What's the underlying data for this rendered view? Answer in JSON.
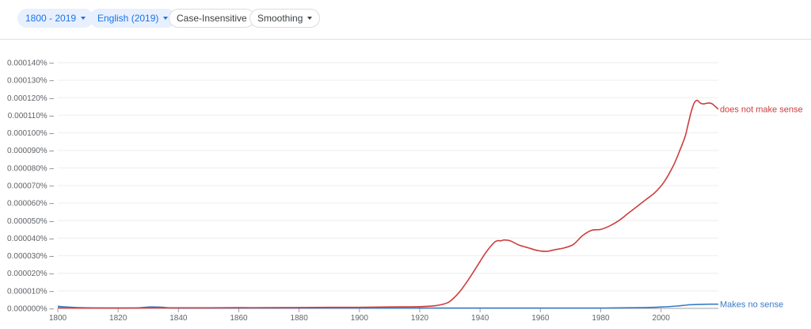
{
  "toolbar": {
    "year_range": "1800 - 2019",
    "corpus": "English (2019)",
    "case": "Case-Insensitive",
    "smoothing": "Smoothing"
  },
  "colors": {
    "accent": "#1a73e8",
    "chip_fill": "#e8f0fe",
    "series_red": "#cc3e3e",
    "series_blue": "#3b7bc8"
  },
  "chart_data": {
    "type": "line",
    "xlim": [
      1800,
      2019
    ],
    "ylim": [
      0,
      0.00014
    ],
    "x_ticks": [
      1800,
      1820,
      1840,
      1860,
      1880,
      1900,
      1920,
      1940,
      1960,
      1980,
      2000
    ],
    "x_tick_labels": [
      "1800",
      "1820",
      "1840",
      "1860",
      "1880",
      "1900",
      "1920",
      "1940",
      "1960",
      "1980",
      "2000"
    ],
    "y_ticks": [
      0,
      1e-05,
      2e-05,
      3e-05,
      4e-05,
      5e-05,
      6e-05,
      7e-05,
      8e-05,
      9e-05,
      0.0001,
      0.00011,
      0.00012,
      0.00013,
      0.00014
    ],
    "y_tick_labels": [
      "0.000000%",
      "0.000010%",
      "0.000020%",
      "0.000030%",
      "0.000040%",
      "0.000050%",
      "0.000060%",
      "0.000070%",
      "0.000080%",
      "0.000090%",
      "0.000100%",
      "0.000110%",
      "0.000120%",
      "0.000130%",
      "0.000140%"
    ],
    "grid": true,
    "legend": "labels at line ends",
    "series": [
      {
        "name": "does not make sense",
        "color": "#cc3e3e",
        "x": [
          1800,
          1805,
          1810,
          1815,
          1820,
          1825,
          1830,
          1835,
          1840,
          1850,
          1860,
          1870,
          1880,
          1890,
          1900,
          1910,
          1920,
          1925,
          1928,
          1930,
          1933,
          1936,
          1939,
          1942,
          1945,
          1947,
          1948,
          1950,
          1953,
          1956,
          1959,
          1962,
          1965,
          1968,
          1971,
          1974,
          1977,
          1980,
          1983,
          1986,
          1989,
          1992,
          1995,
          1998,
          2001,
          2004,
          2006,
          2008,
          2009,
          2010,
          2011,
          2012,
          2013,
          2014,
          2015,
          2016,
          2017,
          2018,
          2019
        ],
        "y": [
          3e-07,
          2e-07,
          2e-07,
          2e-07,
          2e-07,
          2e-07,
          3e-07,
          3e-07,
          3e-07,
          3e-07,
          4e-07,
          4e-07,
          5e-07,
          6e-07,
          6e-07,
          8e-07,
          1e-06,
          1.5e-06,
          2.5e-06,
          4e-06,
          9e-06,
          1.6e-05,
          2.4e-05,
          3.2e-05,
          3.8e-05,
          3.85e-05,
          3.9e-05,
          3.85e-05,
          3.6e-05,
          3.45e-05,
          3.3e-05,
          3.25e-05,
          3.35e-05,
          3.45e-05,
          3.65e-05,
          4.15e-05,
          4.45e-05,
          4.5e-05,
          4.7e-05,
          5e-05,
          5.4e-05,
          5.8e-05,
          6.2e-05,
          6.6e-05,
          7.2e-05,
          8.1e-05,
          8.9e-05,
          9.8e-05,
          0.000105,
          0.000112,
          0.000117,
          0.0001185,
          0.000117,
          0.0001165,
          0.0001168,
          0.000117,
          0.0001165,
          0.000115,
          0.0001135
        ]
      },
      {
        "name": "Makes no sense",
        "color": "#3b7bc8",
        "x": [
          1800,
          1805,
          1810,
          1815,
          1820,
          1826,
          1828,
          1831,
          1834,
          1837,
          1840,
          1850,
          1860,
          1870,
          1880,
          1890,
          1900,
          1920,
          1940,
          1960,
          1980,
          1995,
          2000,
          2005,
          2008,
          2010,
          2013,
          2016,
          2019
        ],
        "y": [
          1.2e-06,
          6e-07,
          3e-07,
          2e-07,
          2e-07,
          2e-07,
          5e-07,
          8e-07,
          7e-07,
          3e-07,
          2e-07,
          2e-07,
          2e-07,
          2e-07,
          2e-07,
          2e-07,
          2e-07,
          2e-07,
          2e-07,
          2e-07,
          2e-07,
          5e-07,
          8e-07,
          1.3e-06,
          1.8e-06,
          2.1e-06,
          2.3e-06,
          2.4e-06,
          2.4e-06
        ]
      }
    ]
  }
}
